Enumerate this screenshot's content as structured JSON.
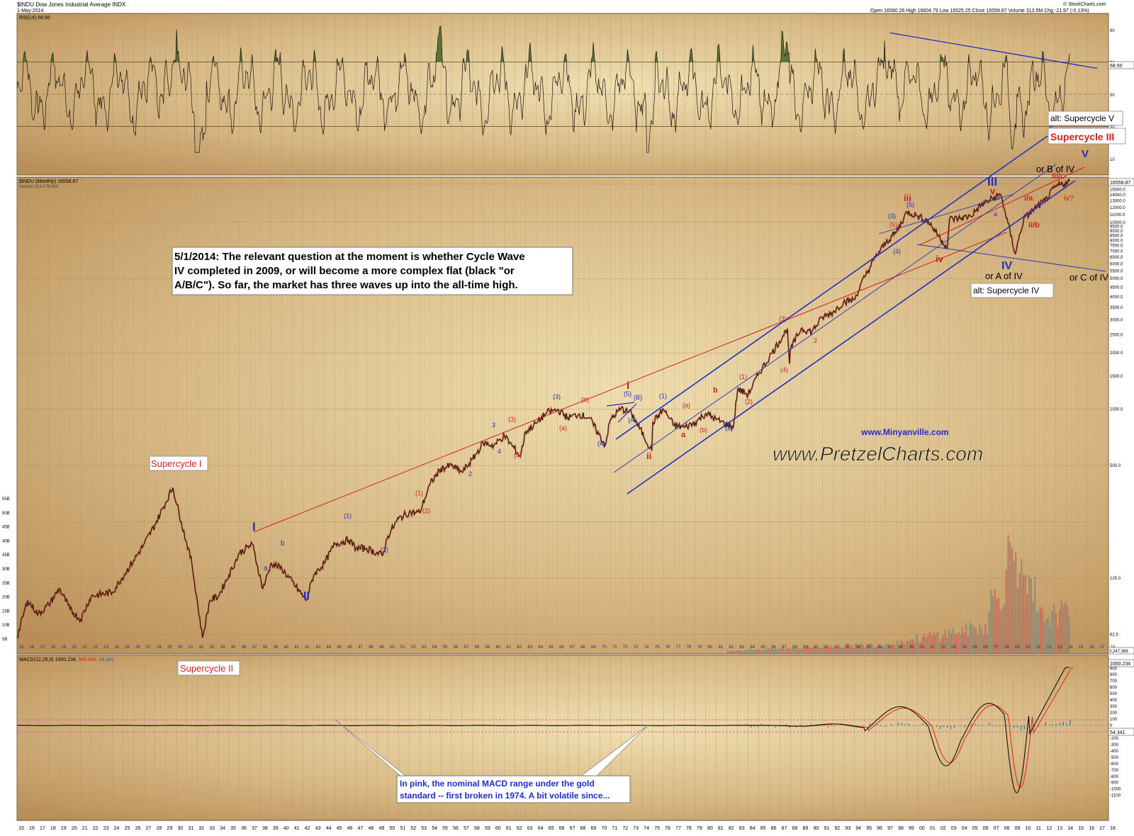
{
  "header": {
    "symbol_line": "$INDU Dow Jones Industrial Average INDX",
    "date_line": "1-May-2014",
    "stats_line": "Open 16580.26  High 16604.79  Low 16525.25  Close 16558.87  Volume 313.5M  Chg -21.97 (-0.13%)",
    "source": "© StockCharts.com"
  },
  "colors": {
    "background": "#c9a772",
    "rsi_fill": "#4e6a2e",
    "wave_blue": "#1f2fc8",
    "wave_red": "#d0211c",
    "price_line": "#2a1d14",
    "macd_signal": "#e0321c",
    "histogram": "#3a78b8",
    "pink_band": "#e0609a"
  },
  "rsi_panel": {
    "label": "RSI(14) 68.50",
    "last_value": "68.50",
    "ticks": [
      "90",
      "70",
      "50",
      "30",
      "10"
    ]
  },
  "price_panel": {
    "label": "$INDU (Monthly) 16558.87",
    "volume_label": "Volume 313,478,688",
    "last_value": "16558.87",
    "right_ticks": [
      "16000.0",
      "15000.0",
      "14000.0",
      "13000.0",
      "12000.0",
      "11000.0",
      "10000.0",
      "9500.0",
      "9000.0",
      "8500.0",
      "8000.0",
      "7500.0",
      "7000.0",
      "6500.0",
      "6000.0",
      "5500.0",
      "5000.0",
      "4500.0",
      "4000.0",
      "3500.0",
      "3000.0",
      "2500.0",
      "2000.0",
      "1500.0",
      "1000.0",
      "500.0",
      "125.0",
      "62.5"
    ],
    "left_ticks": [
      "55B",
      "50B",
      "45B",
      "40B",
      "35B",
      "30B",
      "25B",
      "20B",
      "15B",
      "10B",
      "5B"
    ],
    "volume_last": "3,247,368"
  },
  "macd_panel": {
    "label_prefix": "MACD(12,26,9) 1000.234,",
    "label_signal": "945.893,",
    "label_hist": "54.341",
    "last_value": "1000.234",
    "hist_value": "54.341",
    "ticks": [
      "900",
      "800",
      "700",
      "600",
      "500",
      "400",
      "300",
      "200",
      "100",
      "0",
      "-100",
      "-200",
      "-300",
      "-400",
      "-500",
      "-600",
      "-700",
      "-800",
      "-900",
      "-1000",
      "-1100"
    ]
  },
  "x_axis": {
    "labels": [
      "15",
      "16",
      "17",
      "18",
      "19",
      "20",
      "21",
      "22",
      "23",
      "24",
      "25",
      "26",
      "27",
      "28",
      "29",
      "30",
      "31",
      "32",
      "33",
      "34",
      "35",
      "36",
      "37",
      "38",
      "39",
      "40",
      "41",
      "42",
      "43",
      "44",
      "45",
      "46",
      "47",
      "48",
      "49",
      "50",
      "51",
      "52",
      "53",
      "54",
      "55",
      "56",
      "57",
      "58",
      "59",
      "60",
      "61",
      "62",
      "63",
      "64",
      "65",
      "66",
      "67",
      "68",
      "69",
      "70",
      "71",
      "72",
      "73",
      "74",
      "75",
      "76",
      "77",
      "78",
      "79",
      "80",
      "81",
      "82",
      "83",
      "84",
      "85",
      "86",
      "87",
      "88",
      "89",
      "90",
      "91",
      "92",
      "93",
      "94",
      "95",
      "96",
      "97",
      "98",
      "99",
      "00",
      "01",
      "02",
      "03",
      "04",
      "05",
      "06",
      "07",
      "08",
      "09",
      "10",
      "11",
      "12",
      "13",
      "14",
      "15",
      "16",
      "17",
      "18"
    ]
  },
  "chart_data": {
    "type": "line",
    "series": [
      {
        "name": "$INDU (Monthly)",
        "x": [
          1915,
          1916,
          1917,
          1918,
          1919,
          1920,
          1921,
          1922,
          1924,
          1926,
          1927,
          1928,
          1929.7,
          1930.5,
          1931.5,
          1932.5,
          1933.2,
          1934,
          1935,
          1936,
          1937.2,
          1938.2,
          1939,
          1940,
          1942.3,
          1943,
          1944,
          1945,
          1946.3,
          1947,
          1948,
          1949.5,
          1950,
          1951,
          1952,
          1953,
          1954,
          1955,
          1956,
          1957,
          1958,
          1959,
          1960,
          1961,
          1962.5,
          1963,
          1964,
          1965,
          1966,
          1967,
          1968,
          1969,
          1970.5,
          1971,
          1972,
          1973,
          1974.9,
          1975,
          1976,
          1977,
          1978,
          1979,
          1980,
          1981,
          1982.6,
          1983,
          1984,
          1985,
          1986,
          1987.7,
          1987.9,
          1988,
          1989,
          1990,
          1991,
          1992,
          1993,
          1994,
          1995,
          1996,
          1997,
          1998,
          1999,
          2000,
          2001,
          2002.8,
          2003,
          2004,
          2005,
          2006,
          2007.8,
          2008,
          2009.2,
          2010,
          2011,
          2012,
          2013,
          2014.33
        ],
        "values": [
          60,
          95,
          80,
          90,
          110,
          85,
          75,
          100,
          105,
          155,
          190,
          240,
          381,
          250,
          150,
          60,
          95,
          100,
          130,
          170,
          190,
          110,
          150,
          140,
          95,
          130,
          150,
          190,
          200,
          180,
          180,
          165,
          210,
          260,
          280,
          280,
          400,
          480,
          500,
          460,
          540,
          660,
          640,
          720,
          560,
          760,
          840,
          960,
          995,
          900,
          940,
          900,
          640,
          880,
          1010,
          950,
          600,
          850,
          1000,
          820,
          800,
          850,
          950,
          880,
          800,
          1280,
          1200,
          1550,
          1900,
          2700,
          1750,
          2100,
          2700,
          2600,
          3100,
          3300,
          3750,
          3850,
          5100,
          6500,
          7800,
          8900,
          11400,
          10800,
          10100,
          7300,
          10400,
          10500,
          10800,
          12400,
          14100,
          13000,
          6800,
          10400,
          11800,
          13000,
          15500,
          16558.87
        ]
      }
    ],
    "title": "$INDU Dow Jones Industrial Average INDX",
    "xlabel": "",
    "ylabel": "",
    "xlim": [
      1915,
      2018
    ],
    "ylim": [
      40,
      20000
    ],
    "log_scale": true,
    "grid": true,
    "wave_labels": {
      "supercycle_1": "Supercycle I",
      "supercycle_2": "Supercycle II",
      "supercycle_3": "Supercycle III",
      "alt_sc5": "alt: Supercycle V",
      "alt_sc4": "alt: Supercycle IV",
      "I": "I",
      "II": "II",
      "III": "III",
      "IV": "IV",
      "V": "V",
      "a": "a",
      "b": "b",
      "i_red": "i",
      "ii_red": "ii",
      "iii_red": "iii",
      "iv_red": "iv",
      "v_red": "v",
      "w1": "(1)",
      "w2": "(2)",
      "w3": "(3)",
      "w4": "(4)",
      "w5": "(5)",
      "wA": "(A)",
      "wB": "(B)",
      "wa": "(a)",
      "wb": "(b)",
      "n2": "2",
      "n3": "3",
      "n4": "4",
      "ia": "i/a",
      "iib": "ii/b",
      "iiic": "iii/c",
      "ivq": "iv?",
      "or_b": "or B of IV",
      "or_a": "or A of IV",
      "or_c": "or C of IV"
    },
    "annotations": {
      "main_note": [
        "5/1/2014:  The relevant question at the moment is whether Cycle Wave",
        "IV completed in 2009, or will become a more complex flat (black \"or",
        "A/B/C\").  So far, the market has three waves up into the all-time high."
      ],
      "macd_note": [
        "In pink, the nominal MACD range under the gold",
        "standard -- first broken in 1974.  A bit volatile since..."
      ],
      "website_1": "www.Minyanville.com",
      "website_2": "www.PretzelCharts.com"
    }
  }
}
